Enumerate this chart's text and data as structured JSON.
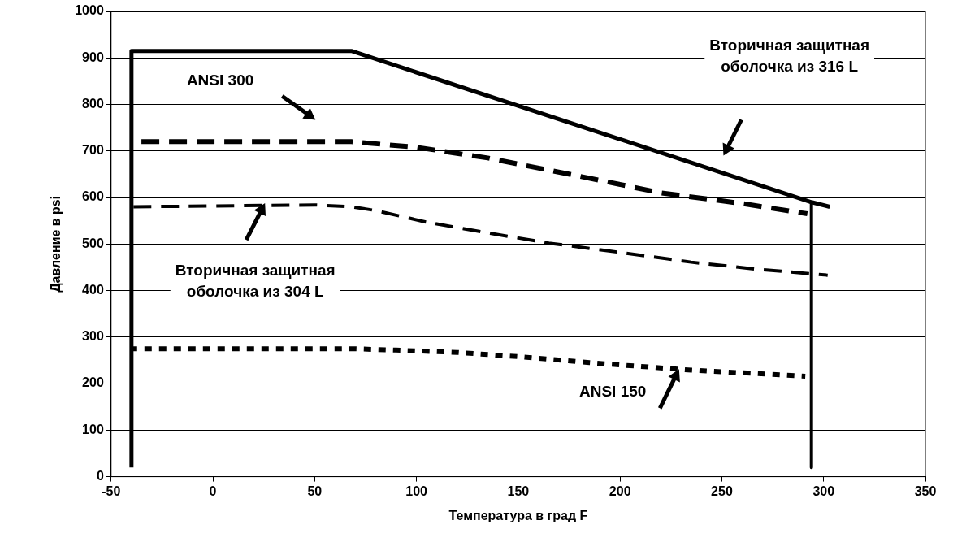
{
  "chart_data": {
    "type": "line",
    "xlabel": "Температура в град F",
    "ylabel": "Давление в psi",
    "xlim": [
      -50,
      350
    ],
    "xticks": [
      -50,
      0,
      50,
      100,
      150,
      200,
      250,
      300,
      350
    ],
    "ylim": [
      0,
      1000
    ],
    "yticks": [
      0,
      100,
      200,
      300,
      400,
      500,
      600,
      700,
      800,
      900,
      1000
    ],
    "grid": "y",
    "legend": false,
    "marker": "none",
    "series": [
      {
        "color": "#000000",
        "line_style": "solid",
        "x": [
          -40,
          -40,
          68,
          294,
          303
        ],
        "values": [
          20,
          915,
          915,
          590,
          580
        ]
      },
      {
        "color": "#000000",
        "line_style": "solid",
        "x": [
          294,
          294
        ],
        "values": [
          590,
          20
        ]
      },
      {
        "color": "#000000",
        "line_style": "dashed",
        "x": [
          -40,
          68,
          100,
          135,
          190,
          220,
          260,
          292
        ],
        "values": [
          720,
          720,
          708,
          685,
          637,
          610,
          587,
          565
        ]
      },
      {
        "color": "#000000",
        "line_style": "dashed",
        "x": [
          -40,
          50,
          68,
          80,
          105,
          135,
          165,
          200,
          235,
          267,
          302
        ],
        "values": [
          580,
          584,
          580,
          572,
          547,
          524,
          502,
          482,
          461,
          446,
          433
        ]
      },
      {
        "color": "#000000",
        "line_style": "dotted",
        "x": [
          -40,
          68,
          90,
          120,
          150,
          185,
          235,
          291
        ],
        "values": [
          275,
          275,
          272,
          267,
          258,
          245,
          229,
          216
        ]
      }
    ],
    "annotations": [
      "ANSI 300",
      "Вторичная защитная оболочка из 304 L",
      "Вторичная защитная оболочка из 316 L",
      {
        "text": "ANSI 150",
        "x": 229,
        "y": 231
      }
    ]
  }
}
